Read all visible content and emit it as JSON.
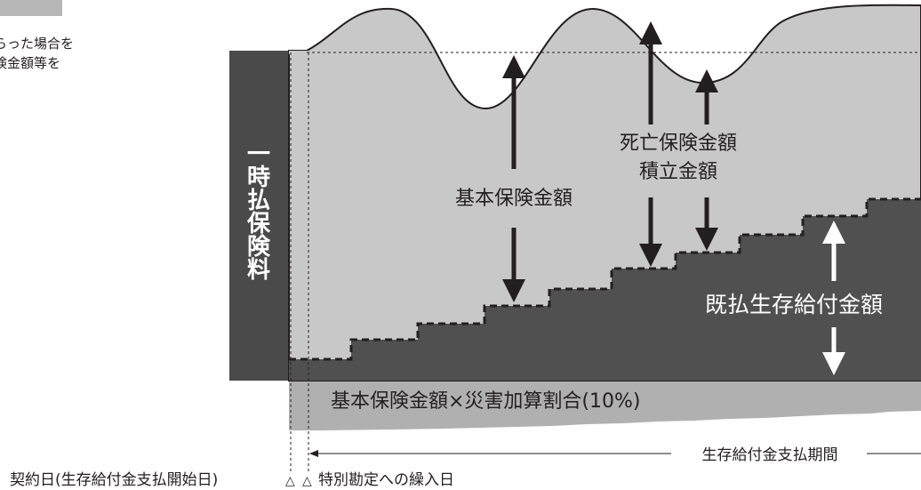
{
  "side_note": {
    "line1": "らった場合を",
    "line2": "険金額等を"
  },
  "diagram": {
    "premium_label_chars": [
      "一",
      "時",
      "払",
      "保",
      "険",
      "料"
    ],
    "basic_amount_label": "基本保険金額",
    "death_label_line1": "死亡保険金額",
    "death_label_line2": "積立金額",
    "survival_label": "既払生存給付金額",
    "disaster_label": "基本保険金額×災害加算割合(10%)",
    "period_label": "生存給付金支払期間",
    "bottom_label_contract": "契約日(生存給付金支払開始日)",
    "bottom_label_transfer": "特別勘定への繰入日",
    "marker_symbols": [
      "△",
      "△"
    ],
    "colors": {
      "premium_bar": "#4a4a4a",
      "light_area": "#c8c8c8",
      "dark_area": "#505050",
      "disaster_band": "#b0b0b0",
      "arrow": "#231f20",
      "white_arrow": "#ffffff"
    }
  }
}
